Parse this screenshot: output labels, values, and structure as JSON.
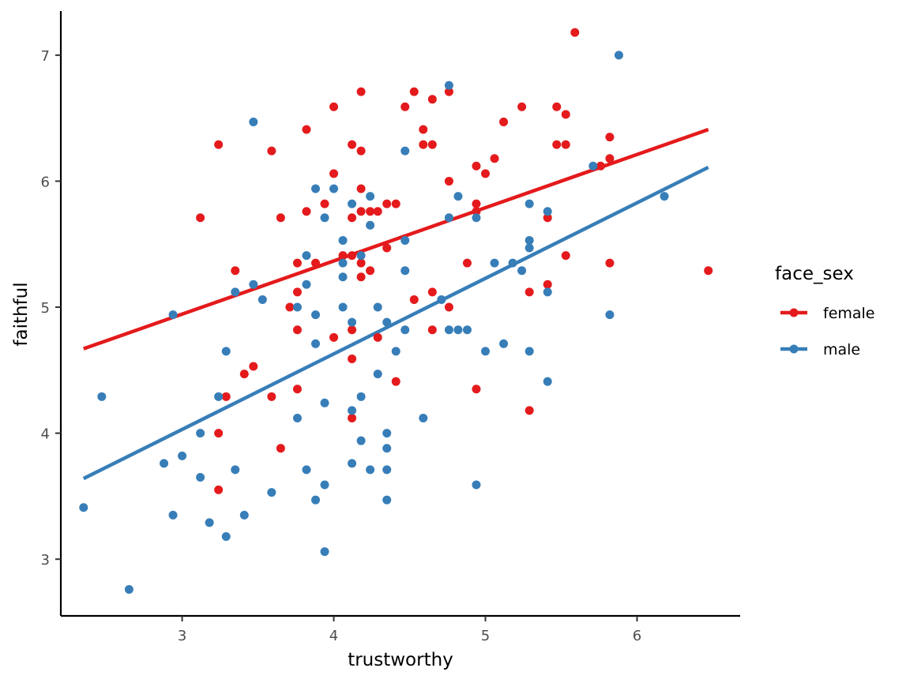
{
  "chart_data": {
    "type": "scatter",
    "xlabel": "trustworthy",
    "ylabel": "faithful",
    "xlim": [
      2.2,
      6.68
    ],
    "ylim": [
      2.55,
      7.35
    ],
    "xticks": [
      3,
      4,
      5,
      6
    ],
    "yticks": [
      3,
      4,
      5,
      6,
      7
    ],
    "grid": false,
    "legend": {
      "title": "face_sex",
      "position": "right"
    },
    "series": [
      {
        "name": "female",
        "color": "#E41A1C",
        "fit": {
          "x": [
            2.35,
            6.47
          ],
          "y": [
            4.67,
            6.41
          ]
        },
        "points": [
          [
            3.12,
            5.71
          ],
          [
            3.24,
            6.29
          ],
          [
            3.24,
            4.0
          ],
          [
            3.24,
            3.55
          ],
          [
            3.29,
            4.29
          ],
          [
            3.35,
            5.29
          ],
          [
            3.41,
            4.47
          ],
          [
            3.47,
            4.53
          ],
          [
            3.59,
            6.24
          ],
          [
            3.59,
            4.29
          ],
          [
            3.65,
            5.71
          ],
          [
            3.65,
            3.88
          ],
          [
            3.71,
            5.0
          ],
          [
            3.76,
            5.35
          ],
          [
            3.76,
            5.12
          ],
          [
            3.76,
            4.82
          ],
          [
            3.76,
            4.35
          ],
          [
            3.82,
            6.41
          ],
          [
            3.82,
            5.76
          ],
          [
            3.88,
            5.35
          ],
          [
            3.94,
            5.82
          ],
          [
            4.0,
            6.59
          ],
          [
            4.0,
            6.06
          ],
          [
            4.0,
            4.76
          ],
          [
            4.06,
            5.41
          ],
          [
            4.12,
            6.29
          ],
          [
            4.12,
            5.71
          ],
          [
            4.12,
            5.41
          ],
          [
            4.12,
            4.82
          ],
          [
            4.12,
            4.59
          ],
          [
            4.12,
            4.12
          ],
          [
            4.18,
            6.71
          ],
          [
            4.18,
            6.24
          ],
          [
            4.18,
            5.94
          ],
          [
            4.18,
            5.76
          ],
          [
            4.18,
            5.35
          ],
          [
            4.18,
            5.24
          ],
          [
            4.24,
            5.76
          ],
          [
            4.24,
            5.29
          ],
          [
            4.29,
            5.76
          ],
          [
            4.29,
            4.76
          ],
          [
            4.35,
            5.82
          ],
          [
            4.35,
            5.47
          ],
          [
            4.41,
            5.82
          ],
          [
            4.41,
            4.41
          ],
          [
            4.47,
            6.59
          ],
          [
            4.53,
            6.71
          ],
          [
            4.53,
            5.06
          ],
          [
            4.59,
            6.41
          ],
          [
            4.59,
            6.29
          ],
          [
            4.65,
            6.65
          ],
          [
            4.65,
            6.29
          ],
          [
            4.65,
            5.12
          ],
          [
            4.65,
            4.82
          ],
          [
            4.76,
            6.71
          ],
          [
            4.76,
            6.0
          ],
          [
            4.76,
            5.0
          ],
          [
            4.88,
            5.35
          ],
          [
            4.94,
            6.12
          ],
          [
            4.94,
            5.82
          ],
          [
            4.94,
            5.76
          ],
          [
            4.94,
            4.35
          ],
          [
            5.0,
            6.06
          ],
          [
            5.06,
            6.18
          ],
          [
            5.12,
            6.47
          ],
          [
            5.24,
            6.59
          ],
          [
            5.29,
            5.12
          ],
          [
            5.29,
            4.18
          ],
          [
            5.41,
            5.71
          ],
          [
            5.41,
            5.18
          ],
          [
            5.47,
            6.59
          ],
          [
            5.47,
            6.29
          ],
          [
            5.53,
            6.53
          ],
          [
            5.53,
            6.29
          ],
          [
            5.53,
            5.41
          ],
          [
            5.59,
            7.18
          ],
          [
            5.76,
            6.12
          ],
          [
            5.82,
            6.35
          ],
          [
            5.82,
            6.18
          ],
          [
            5.82,
            5.35
          ],
          [
            6.47,
            5.29
          ]
        ]
      },
      {
        "name": "male",
        "color": "#377EB8",
        "fit": {
          "x": [
            2.35,
            6.47
          ],
          "y": [
            3.64,
            6.11
          ]
        },
        "points": [
          [
            2.35,
            3.41
          ],
          [
            2.47,
            4.29
          ],
          [
            2.65,
            2.76
          ],
          [
            2.88,
            3.76
          ],
          [
            2.94,
            4.94
          ],
          [
            2.94,
            3.35
          ],
          [
            3.0,
            3.82
          ],
          [
            3.12,
            4.0
          ],
          [
            3.12,
            3.65
          ],
          [
            3.18,
            3.29
          ],
          [
            3.24,
            4.29
          ],
          [
            3.29,
            4.65
          ],
          [
            3.29,
            3.18
          ],
          [
            3.35,
            5.12
          ],
          [
            3.35,
            3.71
          ],
          [
            3.41,
            3.35
          ],
          [
            3.47,
            6.47
          ],
          [
            3.47,
            5.18
          ],
          [
            3.53,
            5.06
          ],
          [
            3.59,
            3.53
          ],
          [
            3.76,
            5.0
          ],
          [
            3.76,
            4.12
          ],
          [
            3.82,
            5.41
          ],
          [
            3.82,
            5.18
          ],
          [
            3.82,
            3.71
          ],
          [
            3.88,
            5.94
          ],
          [
            3.88,
            4.94
          ],
          [
            3.88,
            4.71
          ],
          [
            3.88,
            3.47
          ],
          [
            3.94,
            5.71
          ],
          [
            3.94,
            4.24
          ],
          [
            3.94,
            3.59
          ],
          [
            3.94,
            3.06
          ],
          [
            4.0,
            5.94
          ],
          [
            4.06,
            5.53
          ],
          [
            4.06,
            5.35
          ],
          [
            4.06,
            5.24
          ],
          [
            4.06,
            5.0
          ],
          [
            4.12,
            5.82
          ],
          [
            4.12,
            4.88
          ],
          [
            4.12,
            4.18
          ],
          [
            4.12,
            3.76
          ],
          [
            4.18,
            5.41
          ],
          [
            4.18,
            4.29
          ],
          [
            4.18,
            3.94
          ],
          [
            4.24,
            5.88
          ],
          [
            4.24,
            5.65
          ],
          [
            4.24,
            3.71
          ],
          [
            4.29,
            5.0
          ],
          [
            4.29,
            4.47
          ],
          [
            4.35,
            4.88
          ],
          [
            4.35,
            4.0
          ],
          [
            4.35,
            3.88
          ],
          [
            4.35,
            3.71
          ],
          [
            4.35,
            3.47
          ],
          [
            4.41,
            4.65
          ],
          [
            4.47,
            6.24
          ],
          [
            4.47,
            5.53
          ],
          [
            4.47,
            5.29
          ],
          [
            4.47,
            4.82
          ],
          [
            4.59,
            4.12
          ],
          [
            4.71,
            5.06
          ],
          [
            4.76,
            6.76
          ],
          [
            4.76,
            5.71
          ],
          [
            4.76,
            4.82
          ],
          [
            4.82,
            5.88
          ],
          [
            4.82,
            4.82
          ],
          [
            4.88,
            4.82
          ],
          [
            4.94,
            5.71
          ],
          [
            4.94,
            3.59
          ],
          [
            5.0,
            4.65
          ],
          [
            5.06,
            5.35
          ],
          [
            5.12,
            4.71
          ],
          [
            5.18,
            5.35
          ],
          [
            5.24,
            5.29
          ],
          [
            5.29,
            5.82
          ],
          [
            5.29,
            5.53
          ],
          [
            5.29,
            5.47
          ],
          [
            5.29,
            4.65
          ],
          [
            5.41,
            5.76
          ],
          [
            5.41,
            5.12
          ],
          [
            5.41,
            4.41
          ],
          [
            5.71,
            6.12
          ],
          [
            5.82,
            4.94
          ],
          [
            5.88,
            7.0
          ],
          [
            6.18,
            5.88
          ]
        ]
      }
    ]
  }
}
